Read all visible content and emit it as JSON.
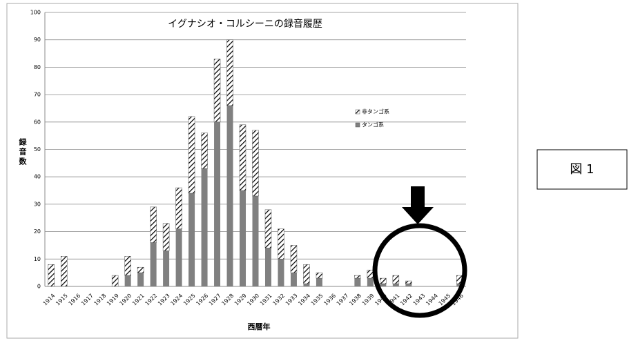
{
  "chart_data": {
    "type": "stacked-bar",
    "title": "イグナシオ・コルシーニの録音履歴",
    "x_label": "西暦年",
    "y_label": "録音数",
    "categories": [
      "1914",
      "1915",
      "1916",
      "1917",
      "1918",
      "1919",
      "1920",
      "1921",
      "1922",
      "1923",
      "1924",
      "1925",
      "1926",
      "1927",
      "1928",
      "1929",
      "1930",
      "1931",
      "1932",
      "1933",
      "1934",
      "1935",
      "1936",
      "1937",
      "1938",
      "1939",
      "1940",
      "1941",
      "1942",
      "1943",
      "1944",
      "1945",
      "1946"
    ],
    "series": [
      {
        "name": "タンゴ系",
        "color": "#808080",
        "values": [
          0,
          0,
          0,
          0,
          0,
          0,
          4,
          5,
          16,
          13,
          21,
          34,
          43,
          60,
          66,
          35,
          33,
          14,
          10,
          5,
          1,
          3,
          0,
          0,
          3,
          3,
          1,
          1,
          1,
          0,
          0,
          0,
          1
        ]
      },
      {
        "name": "非タンゴ系",
        "color": "#000000",
        "values": [
          8,
          11,
          0,
          0,
          0,
          4,
          7,
          2,
          13,
          10,
          15,
          28,
          13,
          23,
          24,
          24,
          24,
          14,
          11,
          10,
          7,
          2,
          0,
          0,
          1,
          3,
          2,
          3,
          1,
          0,
          0,
          0,
          3
        ]
      }
    ],
    "ylim": [
      0,
      100
    ],
    "yticks": [
      0,
      10,
      20,
      30,
      40,
      50,
      60,
      70,
      80,
      90,
      100
    ],
    "grid": true
  },
  "figure_label": "図 1"
}
